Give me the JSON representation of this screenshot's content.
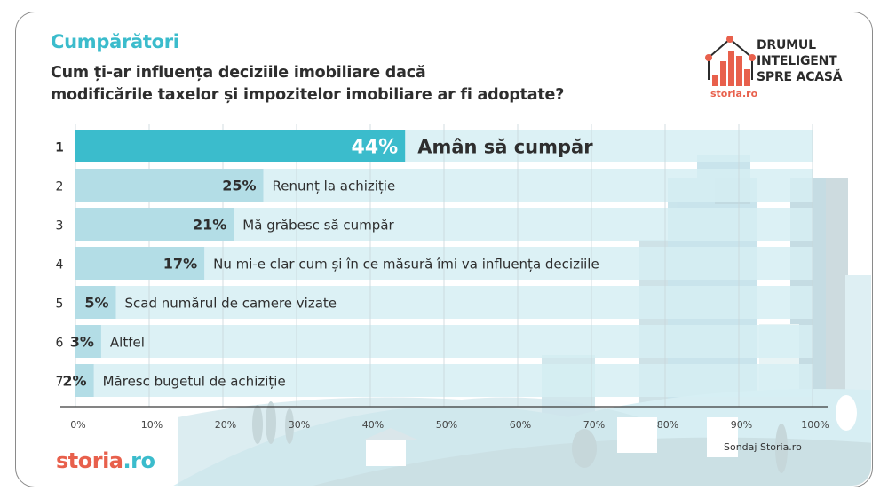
{
  "header": {
    "title": "Cumpărători",
    "question_line1": "Cum ți-ar influența deciziile imobiliare dacă",
    "question_line2": "modificările taxelor și impozitelor imobiliare ar fi adoptate?"
  },
  "logo": {
    "line1": "DRUMUL",
    "line2": "INTELIGENT",
    "line3": "SPRE ACASĂ",
    "brand_small": "storia.ro"
  },
  "footer": {
    "brand_part1": "storia",
    "brand_part2": ".ro",
    "source": "Sondaj Storia.ro"
  },
  "colors": {
    "accent": "#3bbccc",
    "bar_fill": "#b3dde6",
    "bar_track": "#d6eff3",
    "brand_red": "#e8604c",
    "text_dark": "#2e2e2e"
  },
  "chart_data": {
    "type": "bar",
    "orientation": "horizontal",
    "title": "Cum ți-ar influența deciziile imobiliare dacă modificările taxelor și impozitelor imobiliare ar fi adoptate?",
    "xlabel": "",
    "ylabel": "",
    "xlim": [
      0,
      100
    ],
    "grid": true,
    "ticks": [
      "0%",
      "10%",
      "20%",
      "30%",
      "40%",
      "50%",
      "60%",
      "70%",
      "80%",
      "90%",
      "100%"
    ],
    "tick_values": [
      0,
      10,
      20,
      30,
      40,
      50,
      60,
      70,
      80,
      90,
      100
    ],
    "ranks": [
      "1",
      "2",
      "3",
      "4",
      "5",
      "6",
      "7"
    ],
    "categories": [
      "Amân să cumpăr",
      "Renunț la achiziție",
      "Mă grăbesc să cumpăr",
      "Nu mi-e clar cum și în ce măsură îmi va influența deciziile",
      "Scad numărul de camere vizate",
      "Altfel",
      "Măresc bugetul de achiziție"
    ],
    "values": [
      44,
      25,
      21,
      17,
      5,
      3,
      2
    ],
    "value_labels": [
      "44%",
      "25%",
      "21%",
      "17%",
      "5%",
      "3%",
      "2%"
    ]
  }
}
